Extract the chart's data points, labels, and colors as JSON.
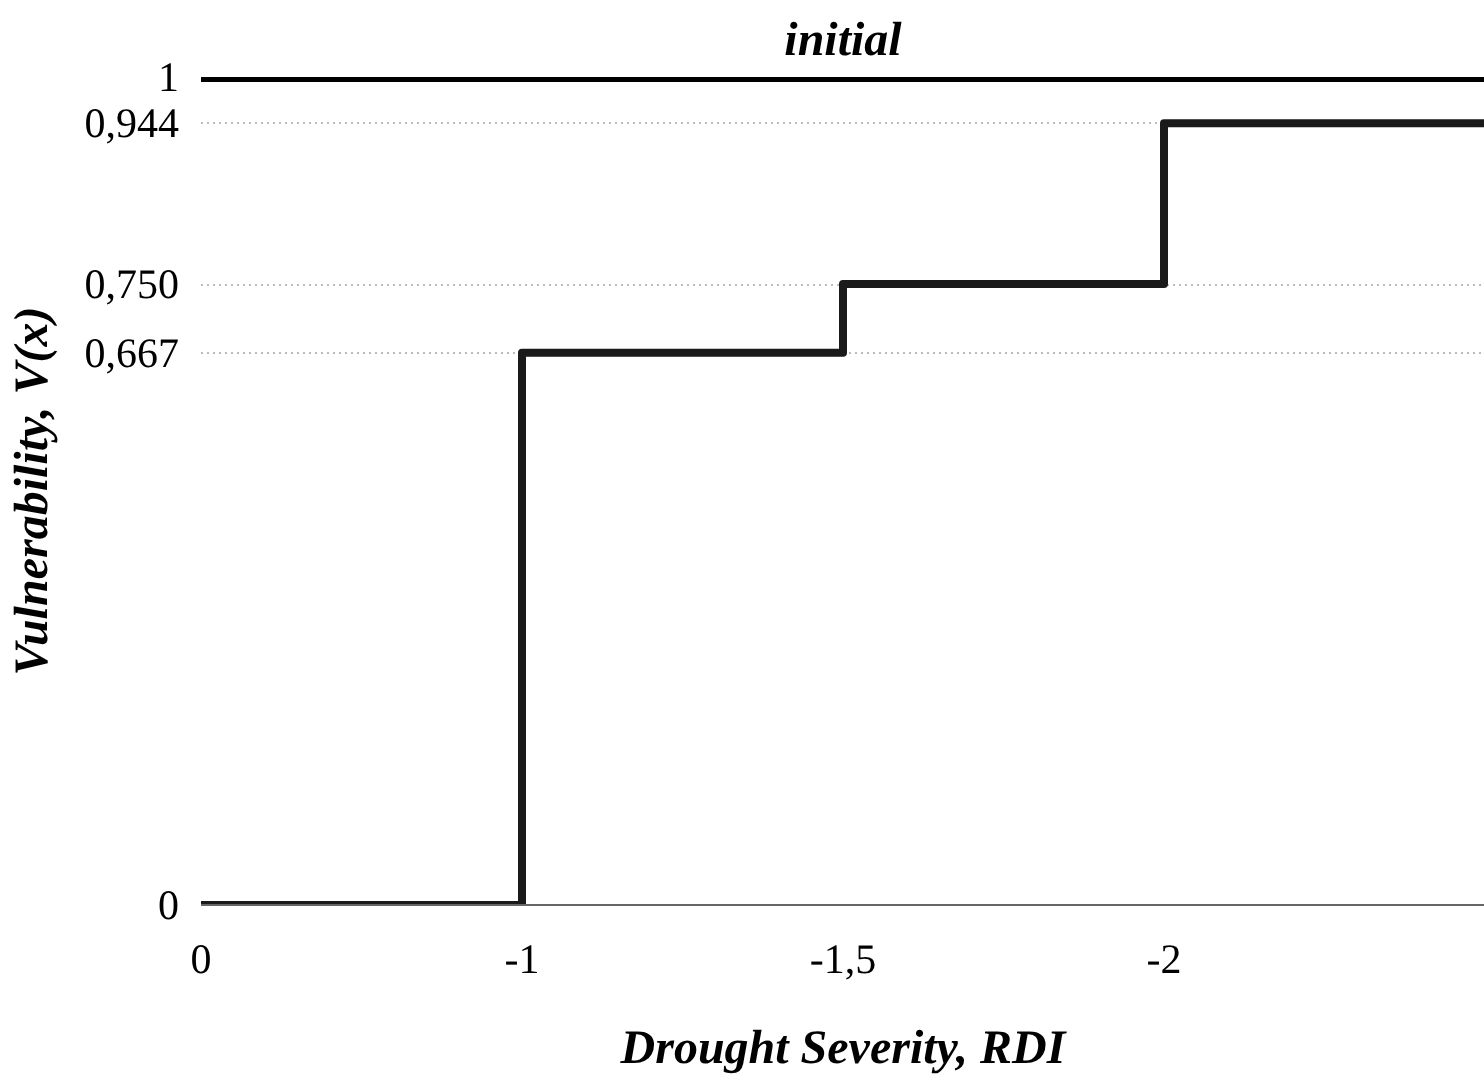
{
  "chart_data": {
    "type": "step",
    "title": "initial",
    "xlabel": "Drought Severity, RDI",
    "ylabel": "Vulnerability, V(x)",
    "categories": [
      "0",
      "-1",
      "-1,5",
      "-2"
    ],
    "values": [
      0,
      0.667,
      0.75,
      0.944
    ],
    "color": "#1a1a1a",
    "ylim": [
      0,
      1
    ],
    "yticks": [
      0,
      {
        "value": 0.667,
        "label": "0,667"
      },
      {
        "value": 0.75,
        "label": "0,750"
      },
      {
        "value": 0.944,
        "label": "0,944"
      },
      1
    ],
    "ref_lines": [
      {
        "axis": "y",
        "value": 1,
        "color": "#000000"
      }
    ],
    "grid": "y"
  }
}
